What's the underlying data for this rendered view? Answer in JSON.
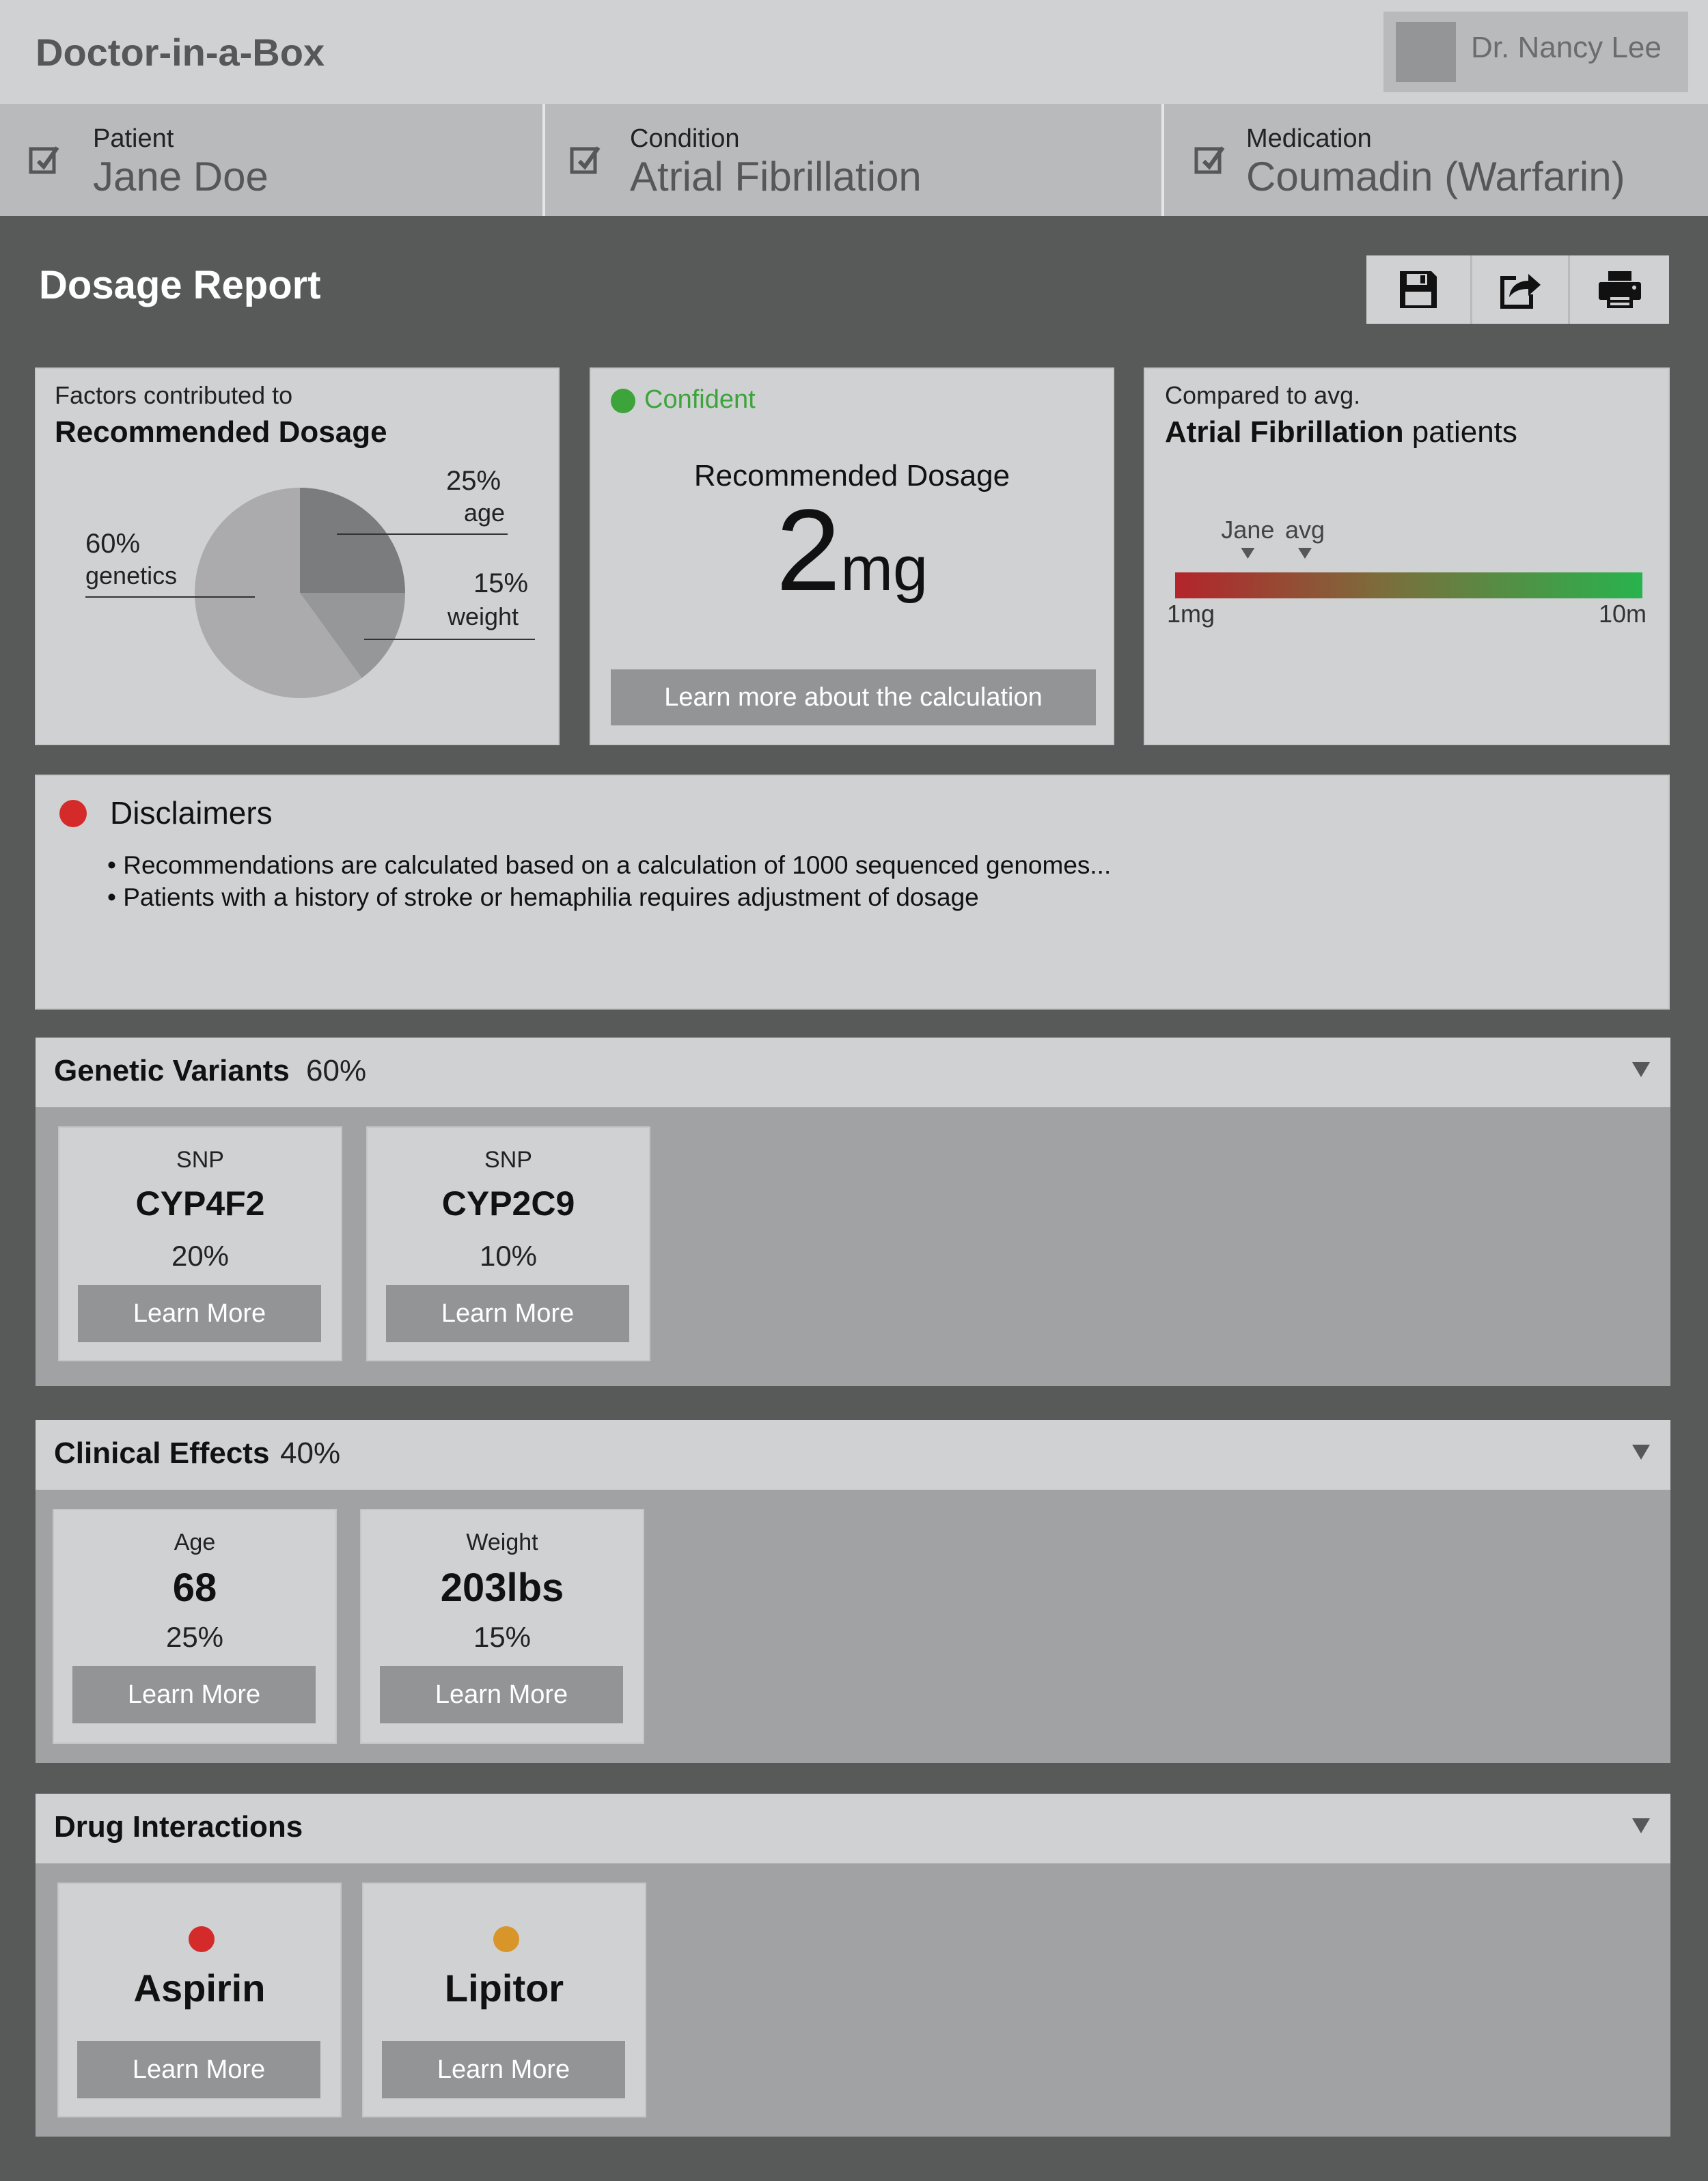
{
  "app": {
    "title": "Doctor-in-a-Box",
    "user_name": "Dr. Nancy Lee"
  },
  "context": {
    "patient": {
      "label": "Patient",
      "value": "Jane Doe"
    },
    "condition": {
      "label": "Condition",
      "value": "Atrial Fibrillation"
    },
    "medication": {
      "label": "Medication",
      "value": "Coumadin (Warfarin)"
    }
  },
  "report": {
    "title": "Dosage Report",
    "toolbar": {
      "save_icon": "save-icon",
      "share_icon": "share-icon",
      "print_icon": "print-icon"
    }
  },
  "factors_card": {
    "subtitle": "Factors contributed to",
    "heading": "Recommended Dosage",
    "slices": [
      {
        "label": "age",
        "percent_label": "25%",
        "value": 25,
        "color": "#7b7c7e"
      },
      {
        "label": "weight",
        "percent_label": "15%",
        "value": 15,
        "color": "#969799"
      },
      {
        "label": "genetics",
        "percent_label": "60%",
        "value": 60,
        "color": "#ababad"
      }
    ]
  },
  "dosage_card": {
    "status": "Confident",
    "status_color": "#3da43c",
    "label": "Recommended Dosage",
    "value": "2",
    "unit": "mg",
    "button": "Learn more about the calculation"
  },
  "compare_card": {
    "subtitle": "Compared to avg.",
    "heading_bold": "Atrial Fibrillation",
    "heading_rest": " patients",
    "markers": [
      {
        "label": "Jane",
        "value_mg": 2.4
      },
      {
        "label": "avg",
        "value_mg": 3.5
      }
    ],
    "scale_min_label": "1mg",
    "scale_max_label": "10m",
    "scale_min": 1,
    "scale_max": 10,
    "gradient_start": "#b3242b",
    "gradient_mid": "#7b6e3c",
    "gradient_end": "#28b34d"
  },
  "disclaimers": {
    "title": "Disclaimers",
    "dot_color": "#d42a2a",
    "items": [
      "• Recommendations are calculated based on a calculation of 1000 sequenced genomes...",
      "• Patients with a history of stroke or hemaphilia requires adjustment of dosage"
    ]
  },
  "genetic_variants": {
    "title": "Genetic Variants",
    "percent": "60%",
    "tiles": [
      {
        "kicker": "SNP",
        "name": "CYP4F2",
        "percent": "20%",
        "button": "Learn More"
      },
      {
        "kicker": "SNP",
        "name": "CYP2C9",
        "percent": "10%",
        "button": "Learn More"
      }
    ]
  },
  "clinical_effects": {
    "title": "Clinical Effects",
    "percent": "40%",
    "tiles": [
      {
        "kicker": "Age",
        "name": "68",
        "percent": "25%",
        "button": "Learn More"
      },
      {
        "kicker": "Weight",
        "name": "203lbs",
        "percent": "15%",
        "button": "Learn More"
      }
    ]
  },
  "drug_interactions": {
    "title": "Drug Interactions",
    "tiles": [
      {
        "name": "Aspirin",
        "dot_color": "#d42a2a",
        "button": "Learn More"
      },
      {
        "name": "Lipitor",
        "dot_color": "#d8962a",
        "button": "Learn More"
      }
    ]
  }
}
